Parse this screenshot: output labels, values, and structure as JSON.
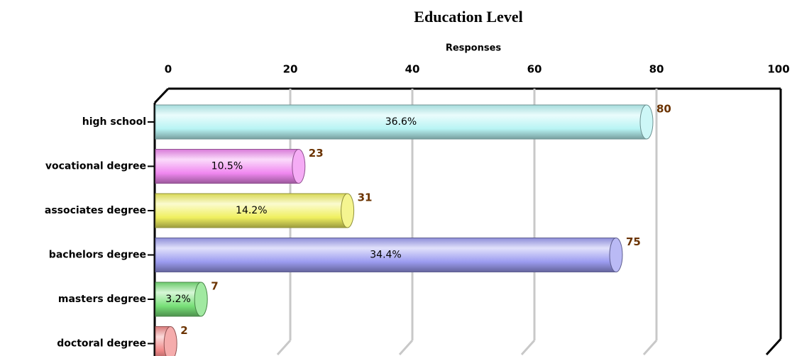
{
  "chart_data": {
    "type": "bar",
    "orientation": "horizontal",
    "title": "Education Level",
    "x_label": "Responses",
    "categories": [
      "high school",
      "vocational degree",
      "associates degree",
      "bachelors degree",
      "masters degree",
      "doctoral degree"
    ],
    "values": [
      80,
      23,
      31,
      75,
      7,
      2
    ],
    "percent_labels": [
      "36.6%",
      "10.5%",
      "14.2%",
      "34.4%",
      "3.2%",
      ""
    ],
    "colors": [
      "#b8f4f4",
      "#f088f0",
      "#f0f060",
      "#9c9cf0",
      "#78e078",
      "#f08888"
    ],
    "xlim": [
      0,
      100
    ],
    "xticks": [
      0,
      20,
      40,
      60,
      80,
      100
    ],
    "grid": true
  }
}
